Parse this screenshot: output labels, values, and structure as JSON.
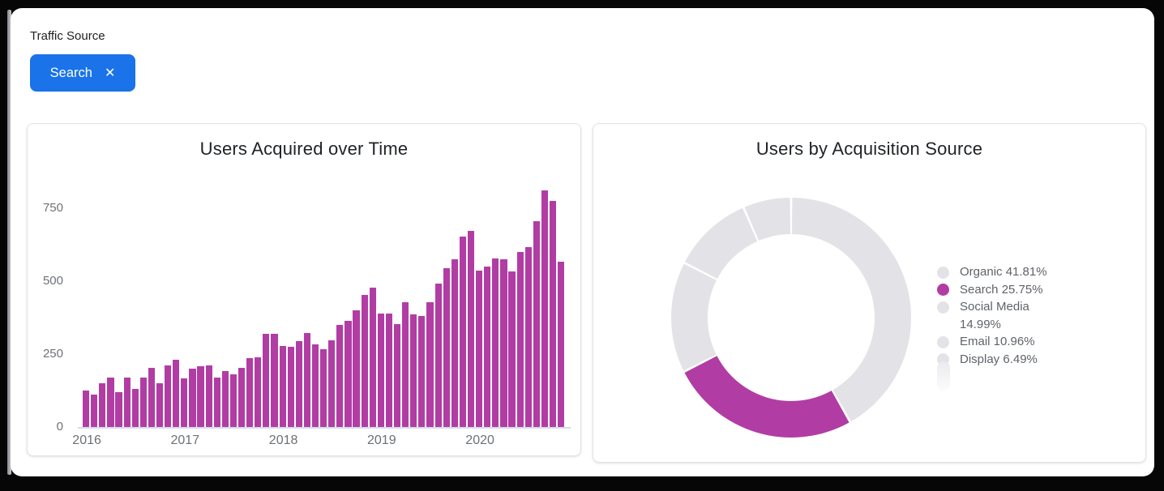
{
  "filters": {
    "label": "Traffic Source",
    "chip": {
      "label": "Search",
      "close_glyph": "✕"
    }
  },
  "colors": {
    "accent_magenta": "#b13da4",
    "muted_slice": "#e3e3e7",
    "chip_blue": "#1a73e8",
    "axis_text": "#6d7175",
    "legend_text": "#5f6368"
  },
  "chart_data": [
    {
      "type": "bar",
      "title": "Users Acquired over Time",
      "series_name": "Users",
      "x_unit": "month",
      "x_tick_labels": [
        "2016",
        "2017",
        "2018",
        "2019",
        "2020"
      ],
      "x_tick_month_index": [
        0,
        12,
        24,
        36,
        48
      ],
      "y_ticks": [
        0,
        250,
        500,
        750
      ],
      "ylim": [
        0,
        820
      ],
      "grid": false,
      "bar_color": "#b13da4",
      "values": [
        126,
        110,
        150,
        170,
        119,
        170,
        131,
        170,
        203,
        150,
        210,
        232,
        167,
        201,
        209,
        212,
        169,
        193,
        181,
        204,
        235,
        240,
        319,
        319,
        278,
        275,
        295,
        322,
        284,
        268,
        296,
        351,
        363,
        400,
        453,
        477,
        390,
        390,
        353,
        427,
        386,
        381,
        427,
        491,
        544,
        576,
        653,
        672,
        537,
        551,
        579,
        574,
        534,
        599,
        618,
        707,
        811,
        774,
        567
      ]
    },
    {
      "type": "donut",
      "title": "Users by Acquisition Source",
      "legend_position": "right",
      "start_angle_deg": 0,
      "clockwise": true,
      "selected_color": "#b13da4",
      "unselected_color": "#e3e3e7",
      "slices": [
        {
          "label": "Organic",
          "pct": 41.81,
          "legend_text": "Organic 41.81%",
          "selected": false
        },
        {
          "label": "Search",
          "pct": 25.75,
          "legend_text": "Search 25.75%",
          "selected": true
        },
        {
          "label": "Social Media",
          "pct": 14.99,
          "legend_text": "Social Media 14.99%",
          "selected": false
        },
        {
          "label": "Email",
          "pct": 10.96,
          "legend_text": "Email 10.96%",
          "selected": false
        },
        {
          "label": "Display",
          "pct": 6.49,
          "legend_text": "Display 6.49%",
          "selected": false
        }
      ]
    }
  ]
}
